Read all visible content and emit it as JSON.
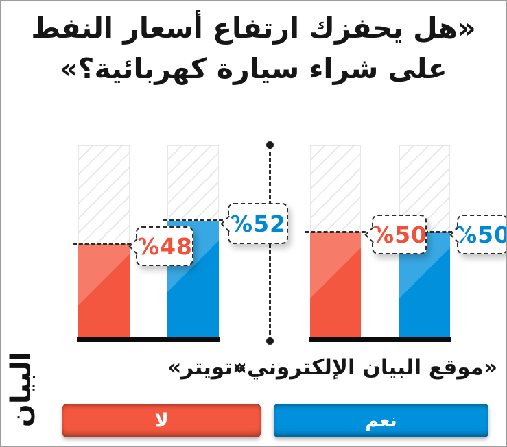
{
  "colors": {
    "no_red": "#f4573f",
    "yes_blue": "#0090dc",
    "ink": "#1a1a1a"
  },
  "logo": {
    "text": "البيان"
  },
  "chart_data": {
    "type": "bar",
    "title": "«هل يحفزك ارتفاع أسعار النفط على شراء سيارة كهربائية؟»",
    "unit": "%",
    "ymax": 100,
    "grid": false,
    "note": "unfilled remainder of each bar shown as diagonal hatching up to 100%",
    "groups": [
      {
        "label": "«تويتر»",
        "bars": [
          {
            "name": "لا",
            "value": 48,
            "display": "%48",
            "color": "#f4573f"
          },
          {
            "name": "نعم",
            "value": 52,
            "display": "%52",
            "color": "#0090dc"
          }
        ]
      },
      {
        "label": "«موقع البيان الإلكتروني»",
        "bars": [
          {
            "name": "لا",
            "value": 50,
            "display": "%50",
            "color": "#f4573f"
          },
          {
            "name": "نعم",
            "value": 50,
            "display": "%50",
            "color": "#0090dc"
          }
        ]
      }
    ],
    "legend": [
      {
        "label": "لا",
        "color": "#f4573f"
      },
      {
        "label": "نعم",
        "color": "#0090dc"
      }
    ],
    "legend_position": "bottom"
  }
}
